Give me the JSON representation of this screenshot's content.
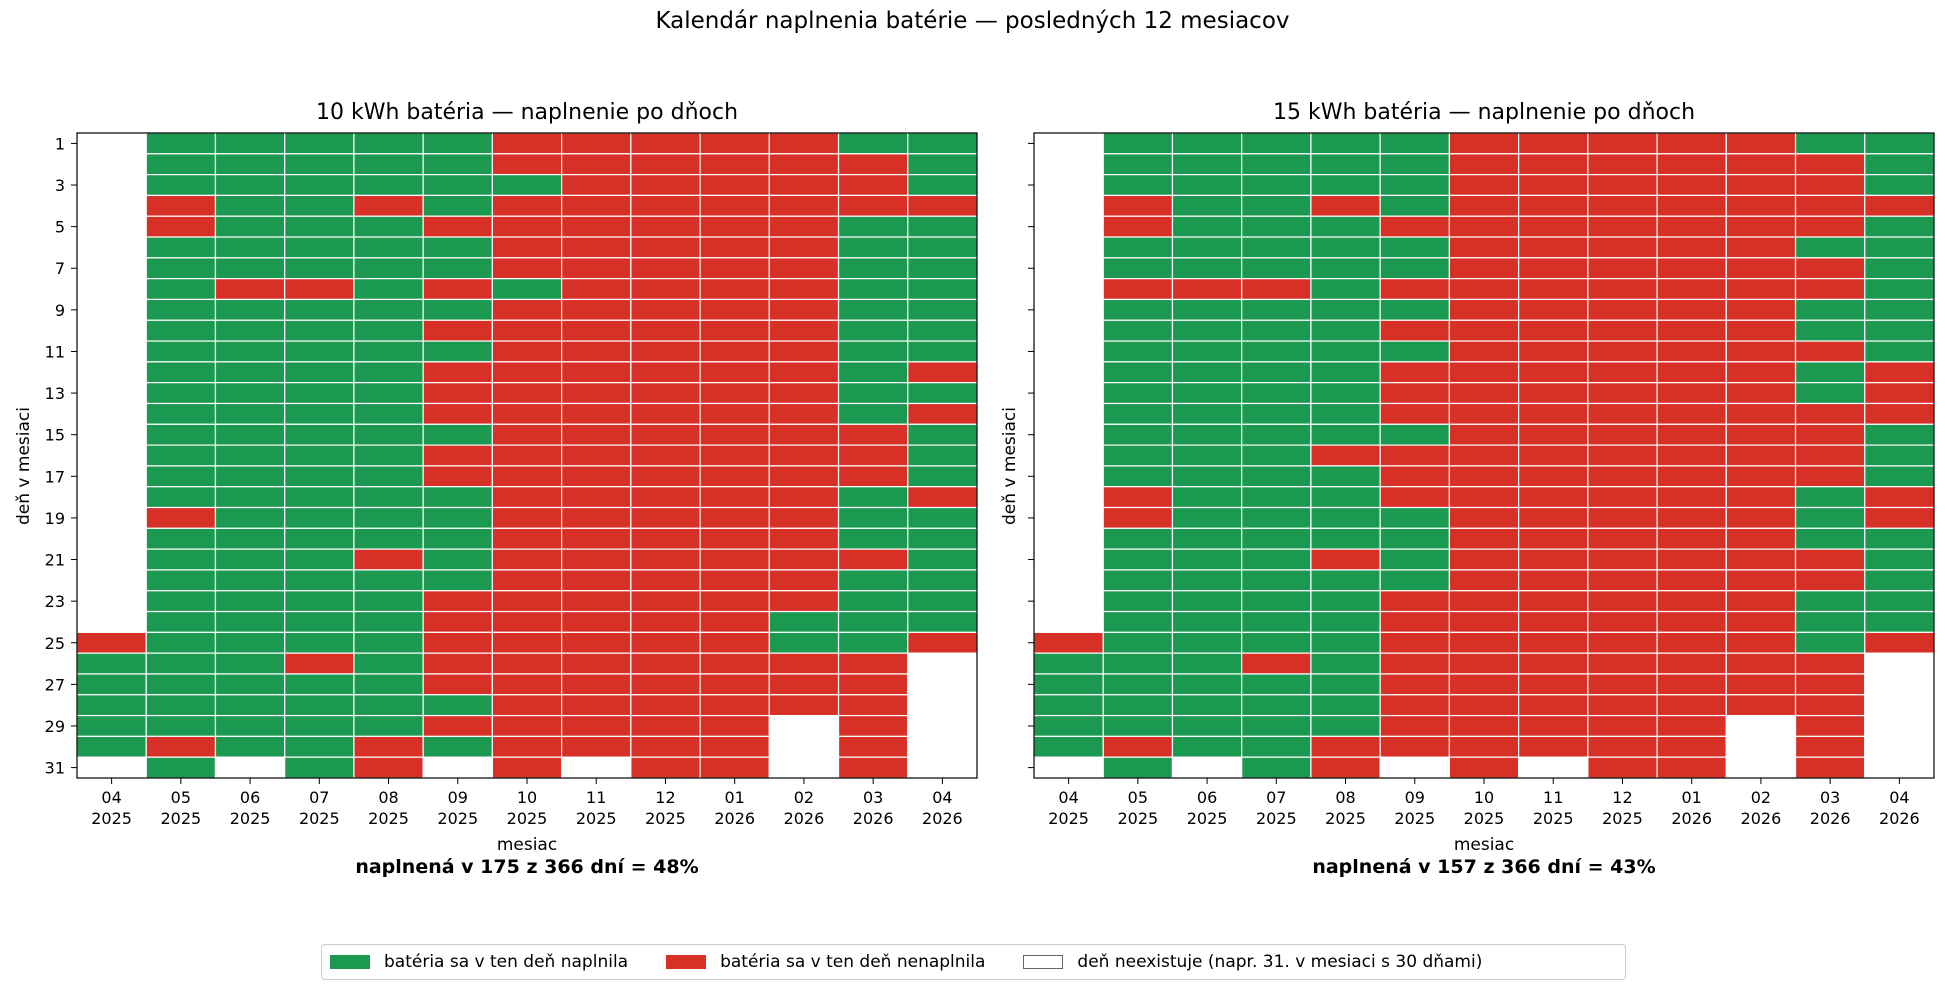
{
  "suptitle": "Kalendár naplnenia batérie — posledných 12 mesiacov",
  "colors": {
    "full": "#1b9950",
    "not_full": "#d73027",
    "none": "#ffffff",
    "grid": "#ffffff"
  },
  "legend": {
    "items": [
      {
        "label": "batéria sa v ten deň naplnila",
        "color": "#1b9950"
      },
      {
        "label": "batéria sa v ten deň nenaplnila",
        "color": "#d73027"
      },
      {
        "label": "deň neexistuje (napr. 31. v mesiaci s 30 dňami)",
        "color": "#ffffff"
      }
    ]
  },
  "chart_data": [
    {
      "type": "heatmap",
      "title": "10 kWh batéria — naplnenie po dňoch",
      "xlabel": "mesiac",
      "ylabel": "deň v mesiaci",
      "caption": "naplnená v 175 z 366 dní = 48%",
      "months": [
        "04\n2025",
        "05\n2025",
        "06\n2025",
        "07\n2025",
        "08\n2025",
        "09\n2025",
        "10\n2025",
        "11\n2025",
        "12\n2025",
        "01\n2026",
        "02\n2026",
        "03\n2026",
        "04\n2026"
      ],
      "y_ticks": [
        1,
        3,
        5,
        7,
        9,
        11,
        13,
        15,
        17,
        19,
        21,
        23,
        25,
        27,
        29,
        31
      ],
      "legend_codes": {
        "1": "full",
        "0": "not_full",
        "-1": "none"
      },
      "values": [
        [
          -1,
          -1,
          -1,
          -1,
          -1,
          -1,
          -1,
          -1,
          -1,
          -1,
          -1,
          -1,
          -1,
          -1,
          -1,
          -1,
          -1,
          -1,
          -1,
          -1,
          -1,
          -1,
          -1,
          -1,
          0,
          1,
          1,
          1,
          1,
          1,
          -1
        ],
        [
          1,
          1,
          1,
          0,
          0,
          1,
          1,
          1,
          1,
          1,
          1,
          1,
          1,
          1,
          1,
          1,
          1,
          1,
          0,
          1,
          1,
          1,
          1,
          1,
          1,
          1,
          1,
          1,
          1,
          0,
          1
        ],
        [
          1,
          1,
          1,
          1,
          1,
          1,
          1,
          0,
          1,
          1,
          1,
          1,
          1,
          1,
          1,
          1,
          1,
          1,
          1,
          1,
          1,
          1,
          1,
          1,
          1,
          1,
          1,
          1,
          1,
          1,
          -1
        ],
        [
          1,
          1,
          1,
          1,
          1,
          1,
          1,
          0,
          1,
          1,
          1,
          1,
          1,
          1,
          1,
          1,
          1,
          1,
          1,
          1,
          1,
          1,
          1,
          1,
          1,
          0,
          1,
          1,
          1,
          1,
          1
        ],
        [
          1,
          1,
          1,
          0,
          1,
          1,
          1,
          1,
          1,
          1,
          1,
          1,
          1,
          1,
          1,
          1,
          1,
          1,
          1,
          1,
          0,
          1,
          1,
          1,
          1,
          1,
          1,
          1,
          1,
          0,
          0
        ],
        [
          1,
          1,
          1,
          1,
          0,
          1,
          1,
          0,
          1,
          0,
          1,
          0,
          0,
          0,
          1,
          0,
          0,
          1,
          1,
          1,
          1,
          1,
          0,
          0,
          0,
          0,
          0,
          1,
          0,
          1,
          -1
        ],
        [
          0,
          0,
          1,
          0,
          0,
          0,
          0,
          1,
          0,
          0,
          0,
          0,
          0,
          0,
          0,
          0,
          0,
          0,
          0,
          0,
          0,
          0,
          0,
          0,
          0,
          0,
          0,
          0,
          0,
          0,
          0
        ],
        [
          0,
          0,
          0,
          0,
          0,
          0,
          0,
          0,
          0,
          0,
          0,
          0,
          0,
          0,
          0,
          0,
          0,
          0,
          0,
          0,
          0,
          0,
          0,
          0,
          0,
          0,
          0,
          0,
          0,
          0,
          -1
        ],
        [
          0,
          0,
          0,
          0,
          0,
          0,
          0,
          0,
          0,
          0,
          0,
          0,
          0,
          0,
          0,
          0,
          0,
          0,
          0,
          0,
          0,
          0,
          0,
          0,
          0,
          0,
          0,
          0,
          0,
          0,
          0
        ],
        [
          0,
          0,
          0,
          0,
          0,
          0,
          0,
          0,
          0,
          0,
          0,
          0,
          0,
          0,
          0,
          0,
          0,
          0,
          0,
          0,
          0,
          0,
          0,
          0,
          0,
          0,
          0,
          0,
          0,
          0,
          0
        ],
        [
          0,
          0,
          0,
          0,
          0,
          0,
          0,
          0,
          0,
          0,
          0,
          0,
          0,
          0,
          0,
          0,
          0,
          0,
          0,
          0,
          0,
          0,
          0,
          1,
          1,
          0,
          0,
          0,
          -1,
          -1,
          -1
        ],
        [
          1,
          0,
          0,
          0,
          1,
          1,
          1,
          1,
          1,
          1,
          1,
          1,
          1,
          1,
          0,
          0,
          0,
          1,
          1,
          1,
          0,
          1,
          1,
          1,
          1,
          0,
          0,
          0,
          0,
          0,
          0
        ],
        [
          1,
          1,
          1,
          0,
          1,
          1,
          1,
          1,
          1,
          1,
          1,
          0,
          1,
          0,
          1,
          1,
          1,
          0,
          1,
          1,
          1,
          1,
          1,
          1,
          0,
          -1,
          -1,
          -1,
          -1,
          -1,
          -1
        ]
      ]
    },
    {
      "type": "heatmap",
      "title": "15 kWh batéria — naplnenie po dňoch",
      "xlabel": "mesiac",
      "ylabel": "deň v mesiaci",
      "caption": "naplnená v 157 z 366 dní = 43%",
      "months": [
        "04\n2025",
        "05\n2025",
        "06\n2025",
        "07\n2025",
        "08\n2025",
        "09\n2025",
        "10\n2025",
        "11\n2025",
        "12\n2025",
        "01\n2026",
        "02\n2026",
        "03\n2026",
        "04\n2026"
      ],
      "y_ticks": [
        1,
        3,
        5,
        7,
        9,
        11,
        13,
        15,
        17,
        19,
        21,
        23,
        25,
        27,
        29,
        31
      ],
      "legend_codes": {
        "1": "full",
        "0": "not_full",
        "-1": "none"
      },
      "values": [
        [
          -1,
          -1,
          -1,
          -1,
          -1,
          -1,
          -1,
          -1,
          -1,
          -1,
          -1,
          -1,
          -1,
          -1,
          -1,
          -1,
          -1,
          -1,
          -1,
          -1,
          -1,
          -1,
          -1,
          -1,
          0,
          1,
          1,
          1,
          1,
          1,
          -1
        ],
        [
          1,
          1,
          1,
          0,
          0,
          1,
          1,
          0,
          1,
          1,
          1,
          1,
          1,
          1,
          1,
          1,
          1,
          0,
          0,
          1,
          1,
          1,
          1,
          1,
          1,
          1,
          1,
          1,
          1,
          0,
          1
        ],
        [
          1,
          1,
          1,
          1,
          1,
          1,
          1,
          0,
          1,
          1,
          1,
          1,
          1,
          1,
          1,
          1,
          1,
          1,
          1,
          1,
          1,
          1,
          1,
          1,
          1,
          1,
          1,
          1,
          1,
          1,
          -1
        ],
        [
          1,
          1,
          1,
          1,
          1,
          1,
          1,
          0,
          1,
          1,
          1,
          1,
          1,
          1,
          1,
          1,
          1,
          1,
          1,
          1,
          1,
          1,
          1,
          1,
          1,
          0,
          1,
          1,
          1,
          1,
          1
        ],
        [
          1,
          1,
          1,
          0,
          1,
          1,
          1,
          1,
          1,
          1,
          1,
          1,
          1,
          1,
          1,
          0,
          1,
          1,
          1,
          1,
          0,
          1,
          1,
          1,
          1,
          1,
          1,
          1,
          1,
          0,
          0
        ],
        [
          1,
          1,
          1,
          1,
          0,
          1,
          1,
          0,
          1,
          0,
          1,
          0,
          0,
          0,
          1,
          0,
          0,
          0,
          1,
          1,
          1,
          1,
          0,
          0,
          0,
          0,
          0,
          0,
          0,
          0,
          -1
        ],
        [
          0,
          0,
          0,
          0,
          0,
          0,
          0,
          0,
          0,
          0,
          0,
          0,
          0,
          0,
          0,
          0,
          0,
          0,
          0,
          0,
          0,
          0,
          0,
          0,
          0,
          0,
          0,
          0,
          0,
          0,
          0
        ],
        [
          0,
          0,
          0,
          0,
          0,
          0,
          0,
          0,
          0,
          0,
          0,
          0,
          0,
          0,
          0,
          0,
          0,
          0,
          0,
          0,
          0,
          0,
          0,
          0,
          0,
          0,
          0,
          0,
          0,
          0,
          -1
        ],
        [
          0,
          0,
          0,
          0,
          0,
          0,
          0,
          0,
          0,
          0,
          0,
          0,
          0,
          0,
          0,
          0,
          0,
          0,
          0,
          0,
          0,
          0,
          0,
          0,
          0,
          0,
          0,
          0,
          0,
          0,
          0
        ],
        [
          0,
          0,
          0,
          0,
          0,
          0,
          0,
          0,
          0,
          0,
          0,
          0,
          0,
          0,
          0,
          0,
          0,
          0,
          0,
          0,
          0,
          0,
          0,
          0,
          0,
          0,
          0,
          0,
          0,
          0,
          0
        ],
        [
          0,
          0,
          0,
          0,
          0,
          0,
          0,
          0,
          0,
          0,
          0,
          0,
          0,
          0,
          0,
          0,
          0,
          0,
          0,
          0,
          0,
          0,
          0,
          0,
          0,
          0,
          0,
          0,
          -1,
          -1,
          -1
        ],
        [
          1,
          0,
          0,
          0,
          0,
          1,
          0,
          0,
          1,
          1,
          0,
          1,
          1,
          0,
          0,
          0,
          0,
          1,
          1,
          1,
          0,
          0,
          1,
          1,
          1,
          0,
          0,
          0,
          0,
          0,
          0
        ],
        [
          1,
          1,
          1,
          0,
          1,
          1,
          1,
          1,
          1,
          1,
          1,
          0,
          0,
          0,
          1,
          1,
          1,
          0,
          0,
          1,
          1,
          1,
          1,
          1,
          0,
          -1,
          -1,
          -1,
          -1,
          -1,
          -1
        ]
      ]
    }
  ]
}
